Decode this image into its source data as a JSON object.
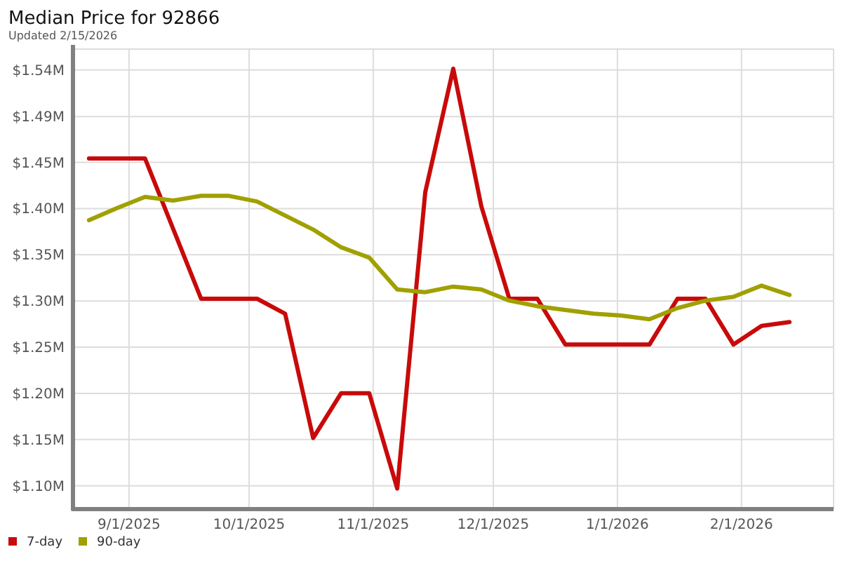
{
  "chart_data": {
    "type": "line",
    "title": "Median Price for 92866",
    "subtitle": "Updated 2/15/2026",
    "x": [
      "2025-08-22",
      "2025-08-29",
      "2025-09-05",
      "2025-09-12",
      "2025-09-19",
      "2025-09-26",
      "2025-10-03",
      "2025-10-10",
      "2025-10-17",
      "2025-10-24",
      "2025-10-31",
      "2025-11-07",
      "2025-11-14",
      "2025-11-21",
      "2025-11-28",
      "2025-12-05",
      "2025-12-12",
      "2025-12-19",
      "2025-12-26",
      "2026-01-02",
      "2026-01-09",
      "2026-01-16",
      "2026-01-23",
      "2026-01-30",
      "2026-02-06",
      "2026-02-13"
    ],
    "series": [
      {
        "name": "7-day",
        "color": "#c80a0a",
        "values": [
          1.45,
          1.45,
          1.45,
          1.375,
          1.3,
          1.3,
          1.3,
          1.284,
          1.151,
          1.199,
          1.199,
          1.097,
          1.414,
          1.546,
          1.399,
          1.3,
          1.3,
          1.251,
          1.251,
          1.251,
          1.251,
          1.3,
          1.3,
          1.251,
          1.271,
          1.275
        ]
      },
      {
        "name": "90-day",
        "color": "#a0a000",
        "values": [
          1.384,
          1.397,
          1.409,
          1.405,
          1.41,
          1.41,
          1.404,
          1.389,
          1.374,
          1.355,
          1.344,
          1.31,
          1.307,
          1.313,
          1.31,
          1.298,
          1.292,
          1.288,
          1.284,
          1.282,
          1.278,
          1.29,
          1.298,
          1.302,
          1.314,
          1.304
        ]
      }
    ],
    "xlim": [
      "2025-08-18",
      "2026-02-24"
    ],
    "xticks": [
      {
        "value": "2025-09-01",
        "label": "9/1/2025"
      },
      {
        "value": "2025-10-01",
        "label": "10/1/2025"
      },
      {
        "value": "2025-11-01",
        "label": "11/1/2025"
      },
      {
        "value": "2025-12-01",
        "label": "12/1/2025"
      },
      {
        "value": "2026-01-01",
        "label": "1/1/2026"
      },
      {
        "value": "2026-02-01",
        "label": "2/1/2026"
      }
    ],
    "ylim": [
      1.075,
      1.567
    ],
    "yticks": [
      {
        "value": 1.1,
        "label": "$1.10M"
      },
      {
        "value": 1.1494,
        "label": "$1.15M"
      },
      {
        "value": 1.1988,
        "label": "$1.20M"
      },
      {
        "value": 1.2482,
        "label": "$1.25M"
      },
      {
        "value": 1.2976,
        "label": "$1.30M"
      },
      {
        "value": 1.347,
        "label": "$1.35M"
      },
      {
        "value": 1.3964,
        "label": "$1.40M"
      },
      {
        "value": 1.4458,
        "label": "$1.45M"
      },
      {
        "value": 1.4949,
        "label": "$1.49M"
      },
      {
        "value": 1.5446,
        "label": "$1.54M"
      }
    ],
    "grid": true,
    "legend": "bottom left",
    "marker": "none",
    "line_style": "solid"
  }
}
